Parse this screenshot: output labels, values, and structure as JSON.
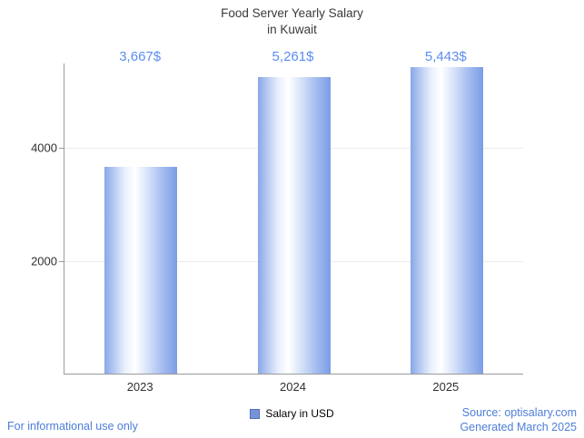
{
  "chart_data": {
    "type": "bar",
    "title": "Food Server Yearly Salary in Kuwait",
    "title_lines": [
      "Food Server Yearly Salary",
      "in Kuwait"
    ],
    "categories": [
      "2023",
      "2024",
      "2025"
    ],
    "values": [
      3667,
      5261,
      5443
    ],
    "value_labels": [
      "3,667$",
      "5,261$",
      "5,443$"
    ],
    "series_name": "Salary in USD",
    "xlabel": "",
    "ylabel": "",
    "yticks": [
      2000,
      4000
    ],
    "ylim": [
      0,
      5500
    ],
    "grid": true,
    "legend_position": "bottom",
    "label_color": "#5b8def",
    "bar_gradient": [
      "#89a7e8",
      "#ffffff",
      "#7b9ce6"
    ]
  },
  "footer": {
    "disclaimer": "For informational use only",
    "source": "Source: optisalary.com",
    "generated": "Generated March 2025"
  }
}
